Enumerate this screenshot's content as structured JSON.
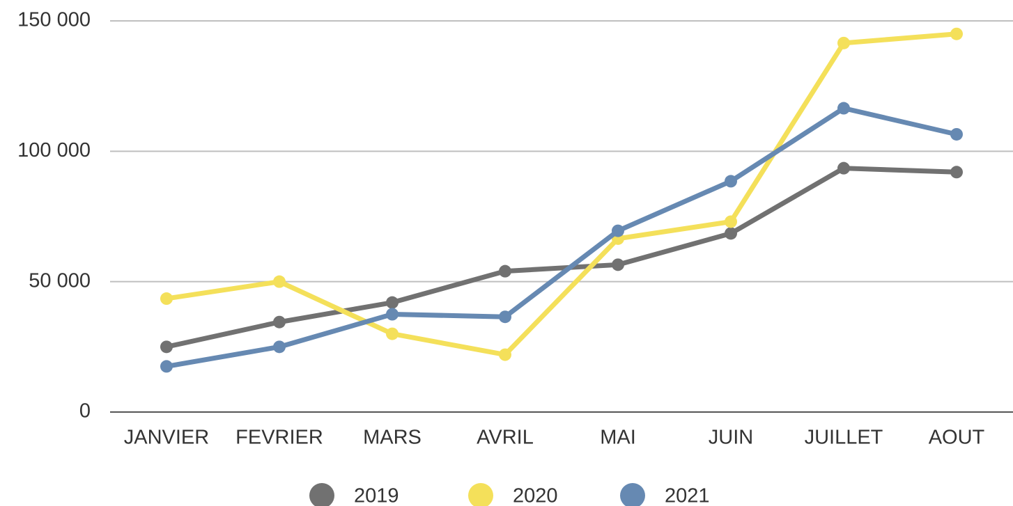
{
  "chart_data": {
    "type": "line",
    "categories": [
      "JANVIER",
      "FEVRIER",
      "MARS",
      "AVRIL",
      "MAI",
      "JUIN",
      "JUILLET",
      "AOUT"
    ],
    "series": [
      {
        "name": "2019",
        "color": "#717171",
        "values": [
          25000,
          34500,
          42000,
          54000,
          56500,
          68500,
          93500,
          92000
        ]
      },
      {
        "name": "2020",
        "color": "#f4e05a",
        "values": [
          43500,
          50000,
          30000,
          22000,
          66500,
          73000,
          141500,
          145000
        ]
      },
      {
        "name": "2021",
        "color": "#6689b2",
        "values": [
          17500,
          25000,
          37500,
          36500,
          69500,
          88500,
          116500,
          106500
        ]
      }
    ],
    "ylim": [
      0,
      150000
    ],
    "yticks": [
      0,
      {
        "value": 50000,
        "label": "50 000"
      },
      {
        "value": 100000,
        "label": "100 000"
      },
      {
        "value": 150000,
        "label": "150 000"
      }
    ],
    "grid": true,
    "legend": "bottom"
  }
}
